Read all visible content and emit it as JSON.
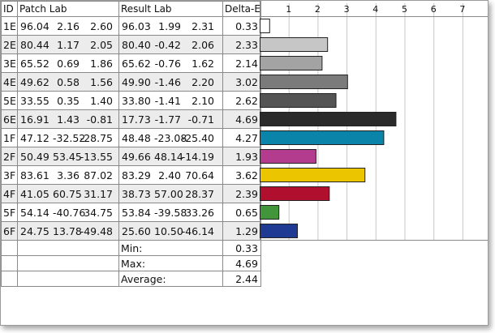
{
  "headers": {
    "id": "ID",
    "patch": "Patch Lab",
    "result": "Result Lab",
    "delta": "Delta-E"
  },
  "rows": [
    {
      "id": "1E",
      "patch": [
        "96.04",
        "2.16",
        "2.60"
      ],
      "result": [
        "96.03",
        "1.99",
        "2.31"
      ],
      "delta": "0.33",
      "value": 0.33,
      "color": "#ffffff"
    },
    {
      "id": "2E",
      "patch": [
        "80.44",
        "1.17",
        "2.05"
      ],
      "result": [
        "80.40",
        "-0.42",
        "2.06"
      ],
      "delta": "2.33",
      "value": 2.33,
      "color": "#c6c6c6"
    },
    {
      "id": "3E",
      "patch": [
        "65.52",
        "0.69",
        "1.86"
      ],
      "result": [
        "65.62",
        "-0.76",
        "1.62"
      ],
      "delta": "2.14",
      "value": 2.14,
      "color": "#a3a3a3"
    },
    {
      "id": "4E",
      "patch": [
        "49.62",
        "0.58",
        "1.56"
      ],
      "result": [
        "49.90",
        "-1.46",
        "2.20"
      ],
      "delta": "3.02",
      "value": 3.02,
      "color": "#7b7b7b"
    },
    {
      "id": "5E",
      "patch": [
        "33.55",
        "0.35",
        "1.40"
      ],
      "result": [
        "33.80",
        "-1.41",
        "2.10"
      ],
      "delta": "2.62",
      "value": 2.62,
      "color": "#545454"
    },
    {
      "id": "6E",
      "patch": [
        "16.91",
        "1.43",
        "-0.81"
      ],
      "result": [
        "17.73",
        "-1.77",
        "-0.71"
      ],
      "delta": "4.69",
      "value": 4.69,
      "color": "#2a2a2a"
    },
    {
      "id": "1F",
      "patch": [
        "47.12",
        "-32.52",
        "-28.75"
      ],
      "result": [
        "48.48",
        "-23.08",
        "-25.40"
      ],
      "delta": "4.27",
      "value": 4.27,
      "color": "#0a84a8"
    },
    {
      "id": "2F",
      "patch": [
        "50.49",
        "53.45",
        "-13.55"
      ],
      "result": [
        "49.66",
        "48.14",
        "-14.19"
      ],
      "delta": "1.93",
      "value": 1.93,
      "color": "#b33c8e"
    },
    {
      "id": "3F",
      "patch": [
        "83.61",
        "3.36",
        "87.02"
      ],
      "result": [
        "83.29",
        "2.40",
        "70.64"
      ],
      "delta": "3.62",
      "value": 3.62,
      "color": "#ebc600"
    },
    {
      "id": "4F",
      "patch": [
        "41.05",
        "60.75",
        "31.17"
      ],
      "result": [
        "38.73",
        "57.00",
        "28.37"
      ],
      "delta": "2.39",
      "value": 2.39,
      "color": "#b00f2d"
    },
    {
      "id": "5F",
      "patch": [
        "54.14",
        "-40.76",
        "34.75"
      ],
      "result": [
        "53.84",
        "-39.58",
        "33.26"
      ],
      "delta": "0.65",
      "value": 0.65,
      "color": "#43953b"
    },
    {
      "id": "6F",
      "patch": [
        "24.75",
        "13.78",
        "-49.48"
      ],
      "result": [
        "25.60",
        "10.50",
        "-46.14"
      ],
      "delta": "1.29",
      "value": 1.29,
      "color": "#1f3a92"
    }
  ],
  "summary": [
    {
      "label": "Min:",
      "value": "0.33"
    },
    {
      "label": "Max:",
      "value": "4.69"
    },
    {
      "label": "Average:",
      "value": "2.44"
    }
  ],
  "chart_data": {
    "type": "bar",
    "orientation": "horizontal",
    "categories": [
      "1E",
      "2E",
      "3E",
      "4E",
      "5E",
      "6E",
      "1F",
      "2F",
      "3F",
      "4F",
      "5F",
      "6F"
    ],
    "values": [
      0.33,
      2.33,
      2.14,
      3.02,
      2.62,
      4.69,
      4.27,
      1.93,
      3.62,
      2.39,
      0.65,
      1.29
    ],
    "xlim": [
      0,
      8
    ],
    "ticks": [
      "1",
      "2",
      "3",
      "4",
      "5",
      "6",
      "7"
    ],
    "grid": true
  }
}
